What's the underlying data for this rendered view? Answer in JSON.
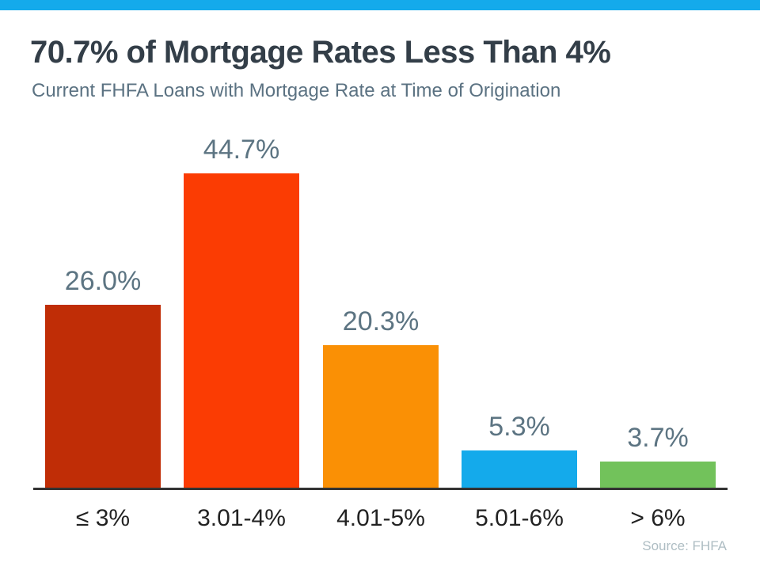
{
  "header": {
    "title": "70.7% of Mortgage Rates Less Than 4%",
    "subtitle": "Current FHFA Loans with Mortgage Rate at Time of Origination",
    "accent_color": "#14AAEB"
  },
  "footer": {
    "source": "Source: FHFA"
  },
  "chart_data": {
    "type": "bar",
    "title": "70.7% of Mortgage Rates Less Than 4%",
    "subtitle": "Current FHFA Loans with Mortgage Rate at Time of Origination",
    "categories": [
      "≤ 3%",
      "3.01-4%",
      "4.01-5%",
      "5.01-6%",
      "> 6%"
    ],
    "values": [
      26.0,
      44.7,
      20.3,
      5.3,
      3.7
    ],
    "data_labels": [
      "26.0%",
      "44.7%",
      "20.3%",
      "5.3%",
      "3.7%"
    ],
    "bar_colors": [
      "#C02D06",
      "#FB3C03",
      "#FA9005",
      "#14AAEB",
      "#72C25B"
    ],
    "value_label_color": "#5C7482",
    "category_label_color": "#222222",
    "axis_line_color": "#333333",
    "xlabel": "",
    "ylabel": "",
    "ylim": [
      0,
      50
    ],
    "grid": false,
    "legend": false,
    "source": "Source: FHFA"
  }
}
